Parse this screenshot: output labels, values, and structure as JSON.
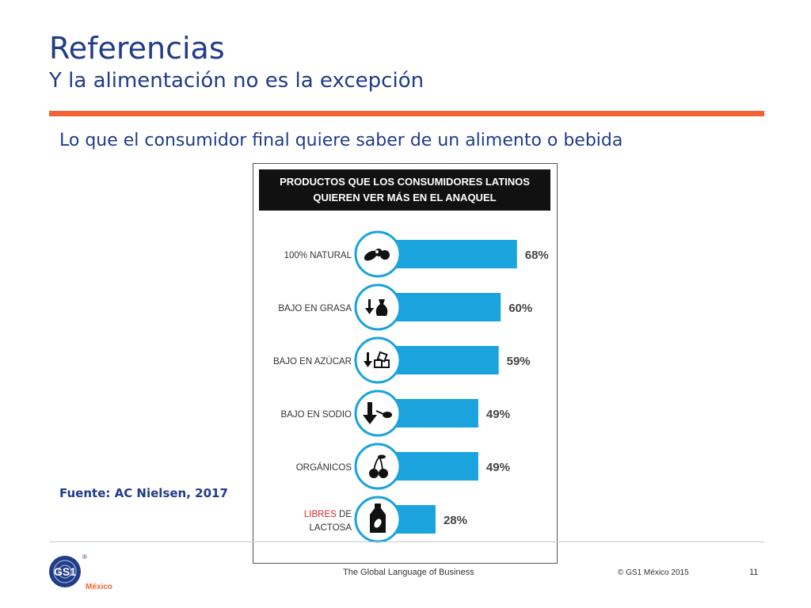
{
  "slide": {
    "title": "Referencias",
    "subtitle": "Y la alimentación no es la excepción",
    "lead": "Lo que el consumidor final quiere saber de un alimento o bebida",
    "source": "Fuente: AC Nielsen, 2017"
  },
  "footer": {
    "tagline": "The Global Language of Business",
    "copyright": "© GS1 México 2015",
    "page_number": "11",
    "logo_text": "GS1",
    "logo_mark": "®",
    "logo_country": "México"
  },
  "colors": {
    "title": "#1f3c88",
    "accent": "#f26334",
    "bar": "#1aa3dc",
    "header_bg": "#111111",
    "highlight": "#e0242c"
  },
  "chart_data": {
    "type": "bar",
    "orientation": "horizontal",
    "title": "PRODUCTOS QUE LOS CONSUMIDORES LATINOS QUIEREN VER MÁS EN EL ANAQUEL",
    "title_lines": [
      "PRODUCTOS QUE LOS CONSUMIDORES LATINOS",
      "QUIEREN VER MÁS EN EL ANAQUEL"
    ],
    "unit": "%",
    "xlim": [
      0,
      100
    ],
    "categories": [
      {
        "label": [
          "100% NATURAL"
        ],
        "value": 68,
        "value_label": "68%",
        "icon": "natural-food-icon"
      },
      {
        "label": [
          "BAJO EN GRASA"
        ],
        "value": 60,
        "value_label": "60%",
        "icon": "low-fat-icon"
      },
      {
        "label": [
          "BAJO EN AZÚCAR"
        ],
        "value": 59,
        "value_label": "59%",
        "icon": "low-sugar-icon"
      },
      {
        "label": [
          "BAJO EN SODIO"
        ],
        "value": 49,
        "value_label": "49%",
        "icon": "low-sodium-icon"
      },
      {
        "label": [
          "ORGÁNICOS"
        ],
        "value": 49,
        "value_label": "49%",
        "icon": "organic-cherry-icon"
      },
      {
        "label_parts": [
          {
            "text": "LIBRES",
            "highlight": true
          },
          {
            "text": " DE",
            "highlight": false
          }
        ],
        "label_line2": "LACTOSA",
        "value": 28,
        "value_label": "28%",
        "icon": "lactose-free-bottle-icon"
      }
    ]
  }
}
